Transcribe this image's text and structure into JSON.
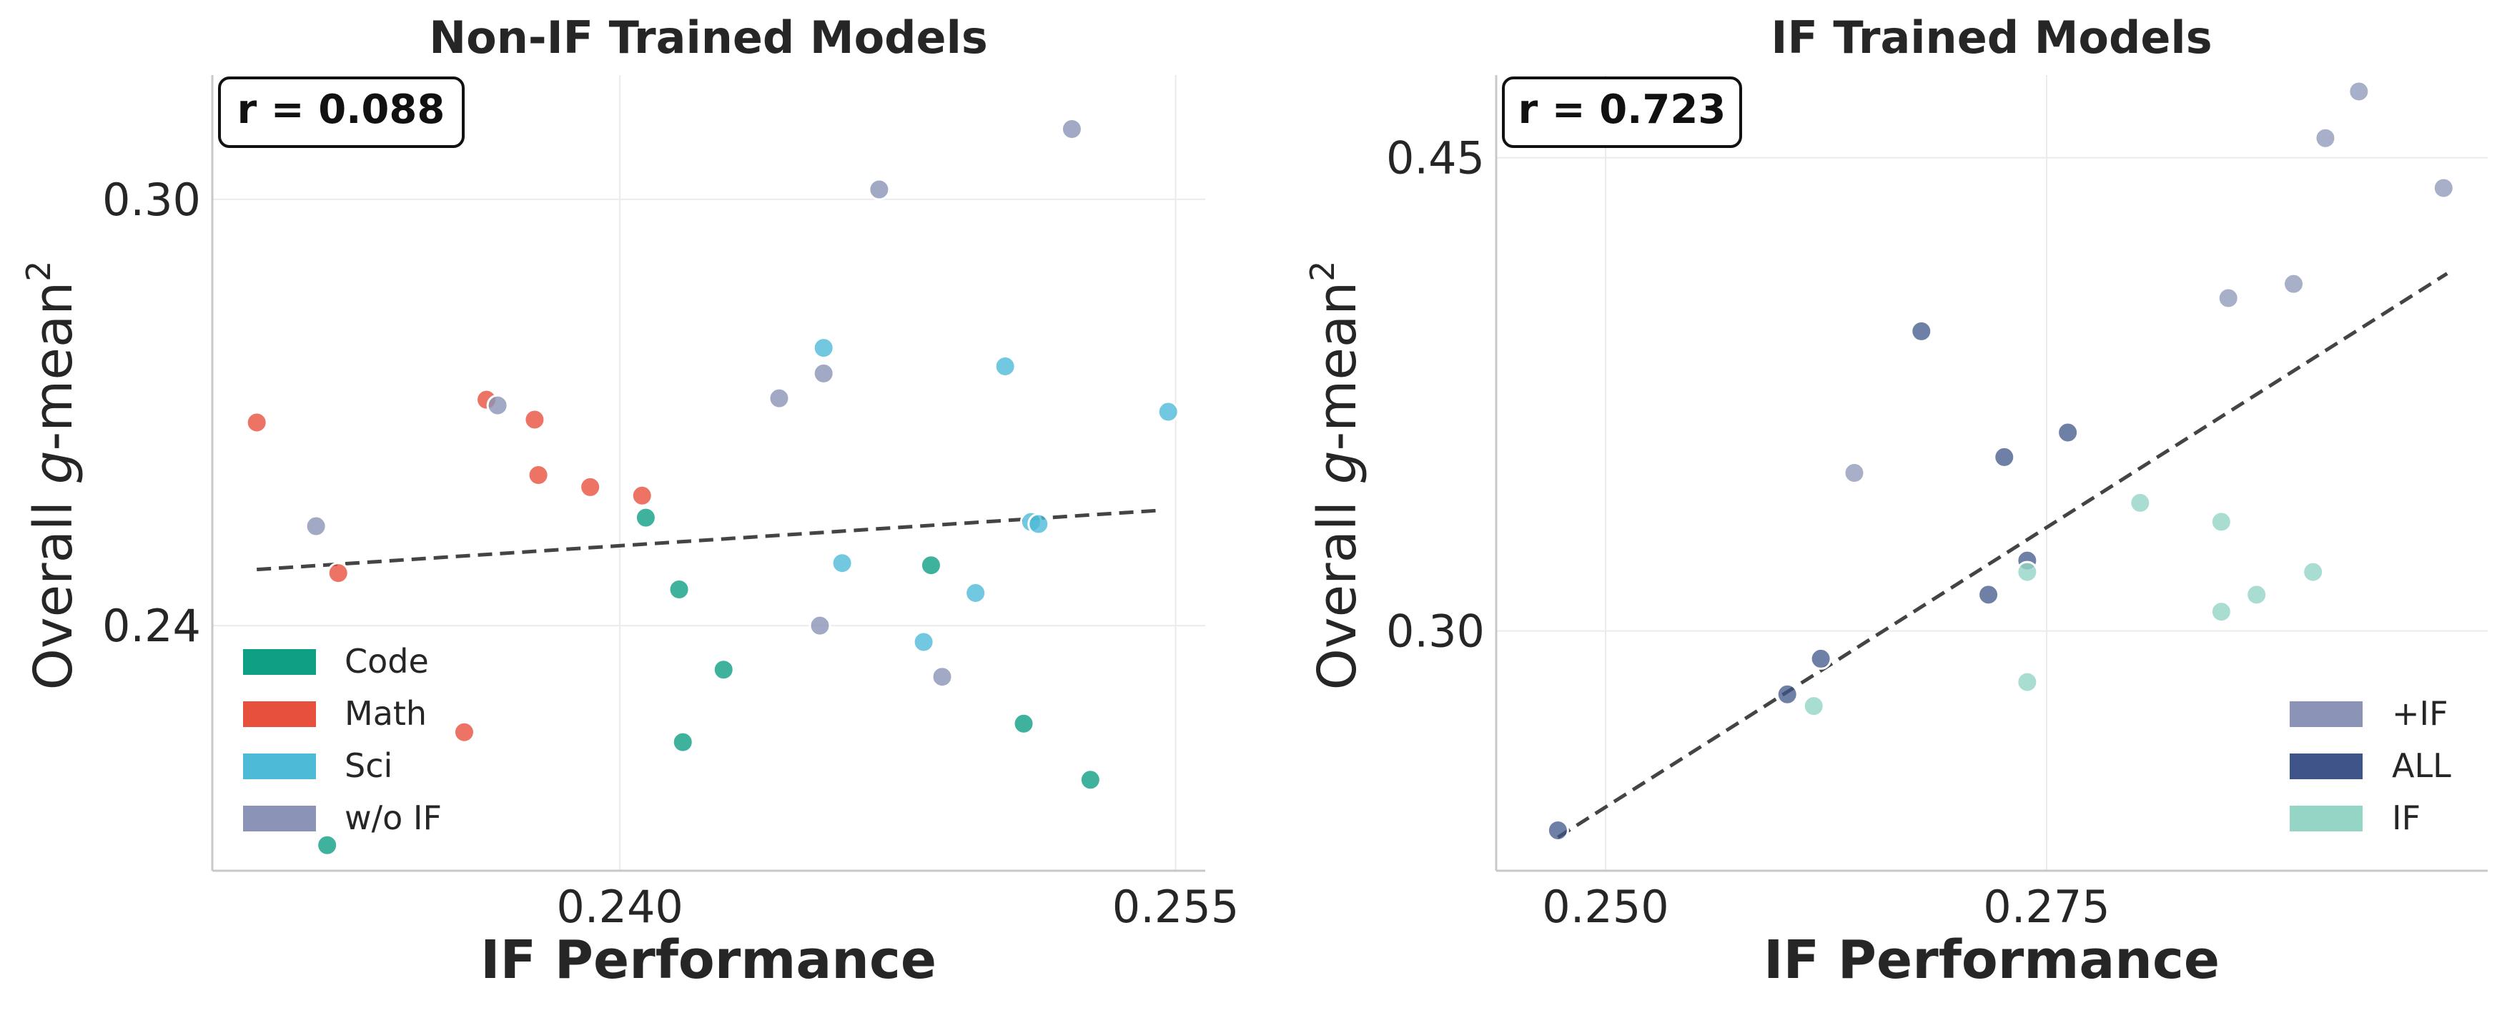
{
  "figure": {
    "colors": {
      "Code": "#0e9f85",
      "Math": "#e8503e",
      "Sci": "#4dbad8",
      "wo_IF": "#8b94b6",
      "plus_IF": "#8b94b6",
      "ALL": "#3f5589",
      "IF": "#95d5c5",
      "trend": "#444444"
    }
  },
  "chart_data": [
    {
      "type": "scatter",
      "title": "Non-IF Trained Models",
      "xlabel": "IF Performance",
      "ylabel_main": "Overall ",
      "ylabel_italic": "g",
      "ylabel_rest": "-mean",
      "ylabel_sup": "2",
      "xlim": [
        0.229,
        0.2558
      ],
      "ylim": [
        0.2055,
        0.3175
      ],
      "xticks": [
        0.24,
        0.255
      ],
      "xtick_labels": [
        "0.240",
        "0.255"
      ],
      "yticks": [
        0.24,
        0.3
      ],
      "ytick_labels": [
        "0.24",
        "0.30"
      ],
      "xgrid": [
        0.24,
        0.255
      ],
      "ygrid": [
        0.24,
        0.3
      ],
      "annotation": "r = 0.088",
      "legend_position": "lower-left",
      "legend": [
        {
          "label": "Code",
          "color_key": "Code"
        },
        {
          "label": "Math",
          "color_key": "Math"
        },
        {
          "label": "Sci",
          "color_key": "Sci"
        },
        {
          "label": "w/o IF",
          "color_key": "wo_IF"
        }
      ],
      "trend": {
        "x": [
          0.2302,
          0.2545
        ],
        "y": [
          0.2479,
          0.2562
        ]
      },
      "series": [
        {
          "name": "Code",
          "color_key": "Code",
          "alpha": 0.8,
          "points": [
            [
              0.2407,
              0.2552
            ],
            [
              0.2416,
              0.2451
            ],
            [
              0.2484,
              0.2485
            ],
            [
              0.2417,
              0.2236
            ],
            [
              0.2428,
              0.2338
            ],
            [
              0.2509,
              0.2262
            ],
            [
              0.2527,
              0.2183
            ],
            [
              0.2321,
              0.2091
            ]
          ]
        },
        {
          "name": "Math",
          "color_key": "Math",
          "alpha": 0.8,
          "points": [
            [
              0.2302,
              0.2686
            ],
            [
              0.2324,
              0.2474
            ],
            [
              0.2364,
              0.2718
            ],
            [
              0.2377,
              0.269
            ],
            [
              0.2378,
              0.2612
            ],
            [
              0.2406,
              0.2583
            ],
            [
              0.2392,
              0.2595
            ],
            [
              0.2358,
              0.225
            ]
          ]
        },
        {
          "name": "Sci",
          "color_key": "Sci",
          "alpha": 0.8,
          "points": [
            [
              0.2455,
              0.2791
            ],
            [
              0.2504,
              0.2765
            ],
            [
              0.2548,
              0.2701
            ],
            [
              0.246,
              0.2488
            ],
            [
              0.2496,
              0.2446
            ],
            [
              0.2482,
              0.2377
            ],
            [
              0.2511,
              0.2546
            ],
            [
              0.2513,
              0.2543
            ]
          ]
        },
        {
          "name": "w/o IF",
          "color_key": "wo_IF",
          "alpha": 0.8,
          "points": [
            [
              0.2318,
              0.254
            ],
            [
              0.2367,
              0.271
            ],
            [
              0.2443,
              0.272
            ],
            [
              0.2455,
              0.2755
            ],
            [
              0.247,
              0.3014
            ],
            [
              0.2522,
              0.3099
            ],
            [
              0.2454,
              0.24
            ],
            [
              0.2487,
              0.2328
            ]
          ]
        }
      ]
    },
    {
      "type": "scatter",
      "title": "IF Trained Models",
      "xlabel": "IF Performance",
      "ylabel_main": "Overall ",
      "ylabel_italic": "g",
      "ylabel_rest": "-mean",
      "ylabel_sup": "2",
      "xlim": [
        0.2438,
        0.3
      ],
      "ylim": [
        0.224,
        0.4762
      ],
      "xticks": [
        0.25,
        0.275
      ],
      "xtick_labels": [
        "0.250",
        "0.275"
      ],
      "yticks": [
        0.3,
        0.45
      ],
      "ytick_labels": [
        "0.30",
        "0.45"
      ],
      "xgrid": [
        0.25,
        0.275
      ],
      "ygrid": [
        0.3,
        0.45
      ],
      "annotation": "r = 0.723",
      "legend_position": "lower-right",
      "legend": [
        {
          "label": "+IF",
          "color_key": "plus_IF"
        },
        {
          "label": "ALL",
          "color_key": "ALL"
        },
        {
          "label": "IF",
          "color_key": "IF"
        }
      ],
      "trend": {
        "x": [
          0.2473,
          0.2977
        ],
        "y": [
          0.2346,
          0.4133
        ]
      },
      "series": [
        {
          "name": "+IF",
          "color_key": "plus_IF",
          "alpha": 0.75,
          "points": [
            [
              0.2641,
              0.3501
            ],
            [
              0.2927,
              0.471
            ],
            [
              0.2908,
              0.4562
            ],
            [
              0.2975,
              0.4404
            ],
            [
              0.289,
              0.41
            ],
            [
              0.2853,
              0.4055
            ]
          ]
        },
        {
          "name": "ALL",
          "color_key": "ALL",
          "alpha": 0.75,
          "points": [
            [
              0.2473,
              0.2368
            ],
            [
              0.2603,
              0.2799
            ],
            [
              0.2622,
              0.2912
            ],
            [
              0.2679,
              0.395
            ],
            [
              0.2726,
              0.3551
            ],
            [
              0.2762,
              0.3629
            ],
            [
              0.2717,
              0.3115
            ],
            [
              0.2739,
              0.3223
            ]
          ]
        },
        {
          "name": "IF",
          "color_key": "IF",
          "alpha": 0.8,
          "points": [
            [
              0.2618,
              0.2762
            ],
            [
              0.2739,
              0.2838
            ],
            [
              0.2739,
              0.3187
            ],
            [
              0.2803,
              0.3406
            ],
            [
              0.2849,
              0.3346
            ],
            [
              0.2849,
              0.3061
            ],
            [
              0.2869,
              0.3115
            ],
            [
              0.2901,
              0.3187
            ]
          ]
        }
      ]
    }
  ]
}
